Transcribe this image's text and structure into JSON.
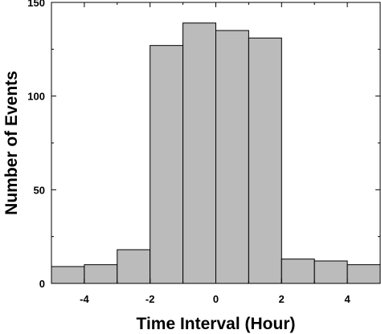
{
  "chart_data": {
    "type": "bar",
    "title": "",
    "xlabel": "Time Interval (Hour)",
    "ylabel": "Number of Events",
    "bins": [
      {
        "x0": -5,
        "x1": -4,
        "value": 9
      },
      {
        "x0": -4,
        "x1": -3,
        "value": 10
      },
      {
        "x0": -3,
        "x1": -2,
        "value": 18
      },
      {
        "x0": -2,
        "x1": -1,
        "value": 127
      },
      {
        "x0": -1,
        "x1": 0,
        "value": 139
      },
      {
        "x0": 0,
        "x1": 1,
        "value": 135
      },
      {
        "x0": 1,
        "x1": 2,
        "value": 131
      },
      {
        "x0": 2,
        "x1": 3,
        "value": 13
      },
      {
        "x0": 3,
        "x1": 4,
        "value": 12
      },
      {
        "x0": 4,
        "x1": 5,
        "value": 10
      }
    ],
    "xlim": [
      -5,
      5
    ],
    "ylim": [
      0,
      150
    ],
    "xticks": [
      -4,
      -2,
      0,
      2,
      4
    ],
    "yticks": [
      0,
      50,
      100,
      150
    ],
    "xtick_labels": [
      "-4",
      "-2",
      "0",
      "2",
      "4"
    ],
    "ytick_labels": [
      "0",
      "50",
      "100",
      "150"
    ],
    "bar_color": "#bbbbbb",
    "edge_color": "#000000",
    "grid": false,
    "legend": "none"
  }
}
